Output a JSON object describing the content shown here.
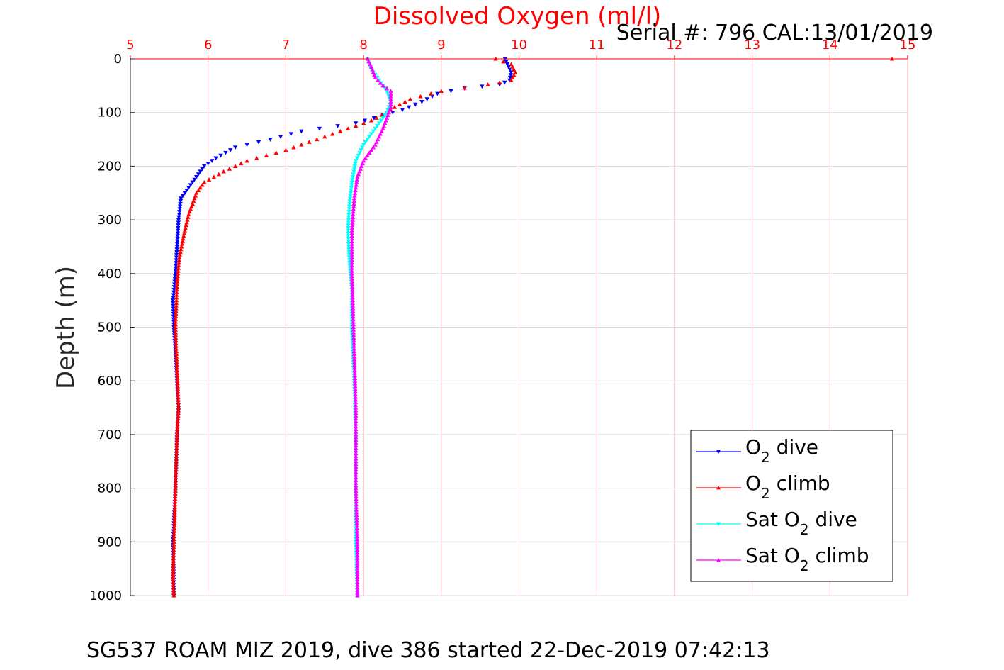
{
  "chart_data": {
    "type": "line",
    "title": "Dissolved Oxygen (ml/l)",
    "serial_text": "Serial #: 796  CAL:13/01/2019",
    "footer": "SG537 ROAM MIZ 2019, dive 386 started 22-Dec-2019 07:42:13",
    "ylabel": "Depth (m)",
    "xlabel": "",
    "x_axis_position": "top",
    "y_reversed": true,
    "xlim": [
      5,
      15
    ],
    "ylim": [
      0,
      1000
    ],
    "x_ticks": [
      "5",
      "6",
      "7",
      "8",
      "9",
      "10",
      "11",
      "12",
      "13",
      "14",
      "15"
    ],
    "y_ticks": [
      "0",
      "100",
      "200",
      "300",
      "400",
      "500",
      "600",
      "700",
      "800",
      "900",
      "1000"
    ],
    "grid": true,
    "legend_position": "bottom-right",
    "legend": [
      {
        "base": "O",
        "sub": "2",
        "rest": " dive",
        "pre": ""
      },
      {
        "base": "O",
        "sub": "2",
        "rest": " climb",
        "pre": ""
      },
      {
        "base": "O",
        "sub": "2",
        "rest": " dive",
        "pre": "Sat "
      },
      {
        "base": "O",
        "sub": "2",
        "rest": " climb",
        "pre": "Sat "
      }
    ],
    "colors": {
      "o2_dive": "#0000ff",
      "o2_climb": "#ff0000",
      "sat_dive": "#00ffff",
      "sat_climb": "#ff00ff",
      "grid_x": "#ffb0b0",
      "grid_y": "#d9d9d9"
    },
    "series": [
      {
        "key": "o2_dive",
        "marker": "down",
        "x": [
          9.82,
          9.85,
          9.9,
          9.88,
          9.75,
          9.3,
          8.95,
          8.75,
          8.5,
          8.25,
          7.9,
          7.2,
          6.8,
          6.35,
          6.1,
          5.95,
          5.85,
          5.75,
          5.65,
          5.62,
          5.6,
          5.58,
          5.55,
          5.56,
          5.58,
          5.6,
          5.62,
          5.6,
          5.58,
          5.55,
          5.56
        ],
        "y": [
          0,
          10,
          25,
          40,
          48,
          55,
          65,
          80,
          95,
          105,
          120,
          135,
          150,
          165,
          185,
          200,
          220,
          240,
          260,
          300,
          350,
          400,
          450,
          500,
          550,
          600,
          650,
          700,
          800,
          900,
          1000
        ]
      },
      {
        "key": "o2_climb",
        "marker": "up",
        "x": [
          9.7,
          9.9,
          9.95,
          9.9,
          9.6,
          9.0,
          8.6,
          8.4,
          8.3,
          8.1,
          7.8,
          7.4,
          7.0,
          6.5,
          6.2,
          5.95,
          5.85,
          5.8,
          5.75,
          5.7,
          5.63,
          5.6,
          5.58,
          5.6,
          5.62,
          5.6,
          5.58,
          5.56,
          5.55,
          5.56
        ],
        "y": [
          0,
          10,
          25,
          40,
          48,
          60,
          75,
          90,
          100,
          115,
          130,
          150,
          170,
          190,
          210,
          230,
          250,
          270,
          290,
          320,
          370,
          420,
          500,
          580,
          650,
          700,
          800,
          900,
          970,
          1000
        ]
      },
      {
        "key": "sat_dive",
        "marker": "down",
        "x": [
          8.05,
          8.1,
          8.2,
          8.3,
          8.35,
          8.3,
          8.15,
          8.0,
          7.9,
          7.85,
          7.82,
          7.8,
          7.82,
          7.85,
          7.85,
          7.88,
          7.9,
          7.9,
          7.9,
          7.92
        ],
        "y": [
          0,
          20,
          40,
          60,
          80,
          100,
          130,
          160,
          190,
          230,
          270,
          320,
          380,
          430,
          500,
          600,
          700,
          800,
          900,
          1000
        ]
      },
      {
        "key": "sat_climb",
        "marker": "up",
        "x": [
          8.05,
          8.1,
          8.15,
          8.25,
          8.35,
          8.35,
          8.3,
          8.25,
          8.15,
          8.0,
          7.92,
          7.88,
          7.85,
          7.85,
          7.87,
          7.9,
          7.9,
          7.92,
          7.92
        ],
        "y": [
          0,
          15,
          35,
          50,
          60,
          90,
          110,
          130,
          160,
          190,
          220,
          260,
          320,
          400,
          500,
          650,
          800,
          900,
          1000
        ]
      }
    ],
    "outliers": [
      {
        "key": "o2_climb",
        "x": 14.8,
        "y": 0
      }
    ]
  }
}
